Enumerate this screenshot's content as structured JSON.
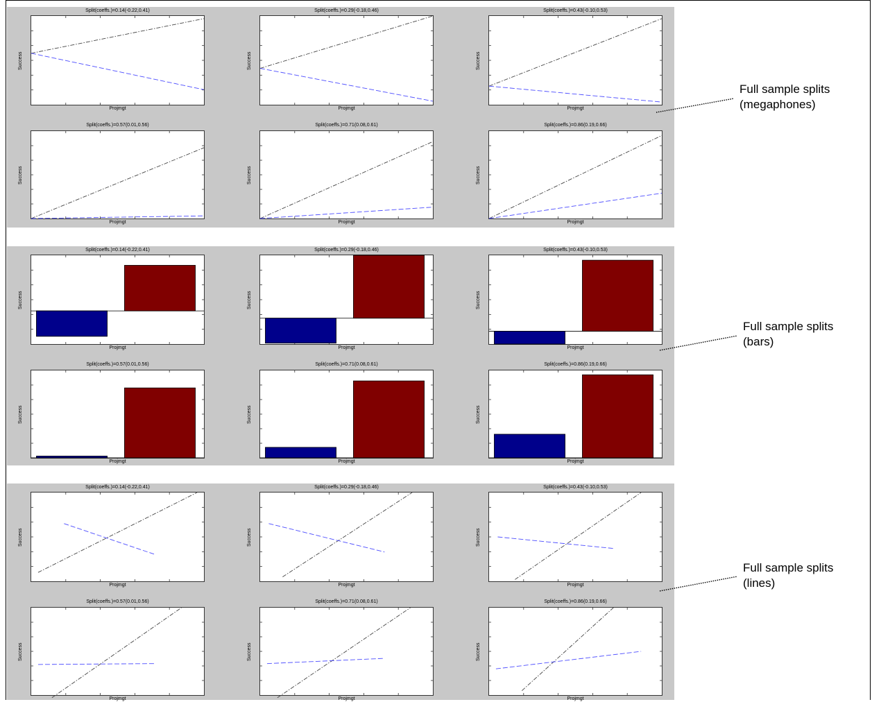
{
  "notes": [
    {
      "text": "Full sample splits\n(megaphones)"
    },
    {
      "text": "Full sample splits\n(bars)"
    },
    {
      "text": "Full sample splits\n(lines)"
    }
  ],
  "chart_data": [
    {
      "group": "megaphones",
      "type": "line",
      "plots": [
        {
          "title": "Split(coeffs.)=0.14(-0.22,0.41)",
          "xlabel": "Projmgt",
          "ylabel": "Success",
          "x": [
            0,
            1
          ],
          "series": [
            {
              "style": "dashdot",
              "values": [
                0.58,
                0.97
              ]
            },
            {
              "style": "dashed",
              "values": [
                0.58,
                0.17
              ]
            }
          ],
          "ylim": [
            0,
            1
          ]
        },
        {
          "title": "Split(coeffs.)=0.29(-0.18,0.46)",
          "xlabel": "Projmgt",
          "ylabel": "Success",
          "x": [
            0,
            1
          ],
          "series": [
            {
              "style": "dashdot",
              "values": [
                0.41,
                1.0
              ]
            },
            {
              "style": "dashed",
              "values": [
                0.41,
                0.04
              ]
            }
          ],
          "ylim": [
            0,
            1
          ]
        },
        {
          "title": "Split(coeffs.)=0.43(-0.10,0.53)",
          "xlabel": "Projmgt",
          "ylabel": "Success",
          "x": [
            0,
            1
          ],
          "series": [
            {
              "style": "dashdot",
              "values": [
                0.21,
                0.97
              ]
            },
            {
              "style": "dashed",
              "values": [
                0.21,
                0.03
              ]
            }
          ],
          "ylim": [
            0,
            1
          ]
        },
        {
          "title": "Split(coeffs.)=0.57(0.01,0.56)",
          "xlabel": "Projmgt",
          "ylabel": "Success",
          "x": [
            0,
            1
          ],
          "series": [
            {
              "style": "dashdot",
              "values": [
                0.0,
                0.81
              ]
            },
            {
              "style": "dashed",
              "values": [
                0.0,
                0.03
              ]
            }
          ],
          "ylim": [
            0,
            1
          ]
        },
        {
          "title": "Split(coeffs.)=0.71(0.08,0.61)",
          "xlabel": "Projmgt",
          "ylabel": "Success",
          "x": [
            0,
            1
          ],
          "series": [
            {
              "style": "dashdot",
              "values": [
                0.0,
                0.88
              ]
            },
            {
              "style": "dashed",
              "values": [
                0.0,
                0.13
              ]
            }
          ],
          "ylim": [
            0,
            1
          ]
        },
        {
          "title": "Split(coeffs.)=0.86(0.19,0.66)",
          "xlabel": "Projmgt",
          "ylabel": "Success",
          "x": [
            0,
            1
          ],
          "series": [
            {
              "style": "dashdot",
              "values": [
                0.0,
                0.95
              ]
            },
            {
              "style": "dashed",
              "values": [
                0.0,
                0.29
              ]
            }
          ],
          "ylim": [
            0,
            1
          ]
        }
      ]
    },
    {
      "group": "bars",
      "type": "bar",
      "plots": [
        {
          "title": "Split(coeffs.)=0.14(-0.22,0.41)",
          "xlabel": "Projmgt",
          "ylabel": "Success",
          "values": [
            -0.33,
            0.59
          ],
          "colors": [
            "#00008b",
            "#800000"
          ],
          "ylim": [
            -0.43,
            0.72
          ]
        },
        {
          "title": "Split(coeffs.)=0.29(-0.18,0.46)",
          "xlabel": "Projmgt",
          "ylabel": "Success",
          "values": [
            -0.27,
            0.68
          ],
          "colors": [
            "#00008b",
            "#800000"
          ],
          "ylim": [
            -0.28,
            0.68
          ]
        },
        {
          "title": "Split(coeffs.)=0.43(-0.10,0.53)",
          "xlabel": "Projmgt",
          "ylabel": "Success",
          "values": [
            -0.13,
            0.72
          ],
          "colors": [
            "#00008b",
            "#800000"
          ],
          "ylim": [
            -0.13,
            0.77
          ]
        },
        {
          "title": "Split(coeffs.)=0.57(0.01,0.56)",
          "xlabel": "Projmgt",
          "ylabel": "Success",
          "values": [
            0.02,
            0.8
          ],
          "colors": [
            "#00008b",
            "#800000"
          ],
          "ylim": [
            0,
            1
          ]
        },
        {
          "title": "Split(coeffs.)=0.71(0.08,0.61)",
          "xlabel": "Projmgt",
          "ylabel": "Success",
          "values": [
            0.12,
            0.88
          ],
          "colors": [
            "#00008b",
            "#800000"
          ],
          "ylim": [
            0,
            1
          ]
        },
        {
          "title": "Split(coeffs.)=0.86(0.19,0.66)",
          "xlabel": "Projmgt",
          "ylabel": "Success",
          "values": [
            0.27,
            0.95
          ],
          "colors": [
            "#00008b",
            "#800000"
          ],
          "ylim": [
            0,
            1
          ]
        }
      ]
    },
    {
      "group": "lines",
      "type": "line",
      "plots": [
        {
          "title": "Split(coeffs.)=0.14(-0.22,0.41)",
          "xlabel": "Projmgt",
          "ylabel": "Success",
          "series": [
            {
              "style": "dashdot",
              "x": [
                0.04,
                0.96
              ],
              "values": [
                0.1,
                1.0
              ]
            },
            {
              "style": "dashed",
              "x": [
                0.19,
                0.72
              ],
              "values": [
                0.65,
                0.3
              ]
            }
          ],
          "xlim": [
            0,
            1
          ],
          "ylim": [
            0,
            1
          ]
        },
        {
          "title": "Split(coeffs.)=0.29(-0.18,0.46)",
          "xlabel": "Projmgt",
          "ylabel": "Success",
          "series": [
            {
              "style": "dashdot",
              "x": [
                0.13,
                0.88
              ],
              "values": [
                0.05,
                1.0
              ]
            },
            {
              "style": "dashed",
              "x": [
                0.05,
                0.72
              ],
              "values": [
                0.65,
                0.33
              ]
            }
          ],
          "xlim": [
            0,
            1
          ],
          "ylim": [
            0,
            1
          ]
        },
        {
          "title": "Split(coeffs.)=0.43(-0.10,0.53)",
          "xlabel": "Projmgt",
          "ylabel": "Success",
          "series": [
            {
              "style": "dashdot",
              "x": [
                0.15,
                0.88
              ],
              "values": [
                0.02,
                1.0
              ]
            },
            {
              "style": "dashed",
              "x": [
                0.05,
                0.72
              ],
              "values": [
                0.5,
                0.37
              ]
            }
          ],
          "xlim": [
            0,
            1
          ],
          "ylim": [
            0,
            1
          ]
        },
        {
          "title": "Split(coeffs.)=0.57(0.01,0.56)",
          "xlabel": "Projmgt",
          "ylabel": "Success",
          "series": [
            {
              "style": "dashdot",
              "x": [
                0.12,
                0.87
              ],
              "values": [
                -0.03,
                1.0
              ]
            },
            {
              "style": "dashed",
              "x": [
                0.04,
                0.72
              ],
              "values": [
                0.35,
                0.36
              ]
            }
          ],
          "xlim": [
            0,
            1
          ],
          "ylim": [
            0,
            1
          ]
        },
        {
          "title": "Split(coeffs.)=0.71(0.08,0.61)",
          "xlabel": "Projmgt",
          "ylabel": "Success",
          "series": [
            {
              "style": "dashdot",
              "x": [
                0.1,
                0.87
              ],
              "values": [
                -0.03,
                1.0
              ]
            },
            {
              "style": "dashed",
              "x": [
                0.04,
                0.72
              ],
              "values": [
                0.36,
                0.42
              ]
            }
          ],
          "xlim": [
            0,
            1
          ],
          "ylim": [
            0,
            1
          ]
        },
        {
          "title": "Split(coeffs.)=0.86(0.19,0.66)",
          "xlabel": "Projmgt",
          "ylabel": "Success",
          "series": [
            {
              "style": "dashdot",
              "x": [
                0.19,
                0.72
              ],
              "values": [
                0.05,
                1.0
              ]
            },
            {
              "style": "dashed",
              "x": [
                0.04,
                0.88
              ],
              "values": [
                0.3,
                0.5
              ]
            }
          ],
          "xlim": [
            0,
            1
          ],
          "ylim": [
            0,
            1
          ]
        }
      ]
    }
  ]
}
